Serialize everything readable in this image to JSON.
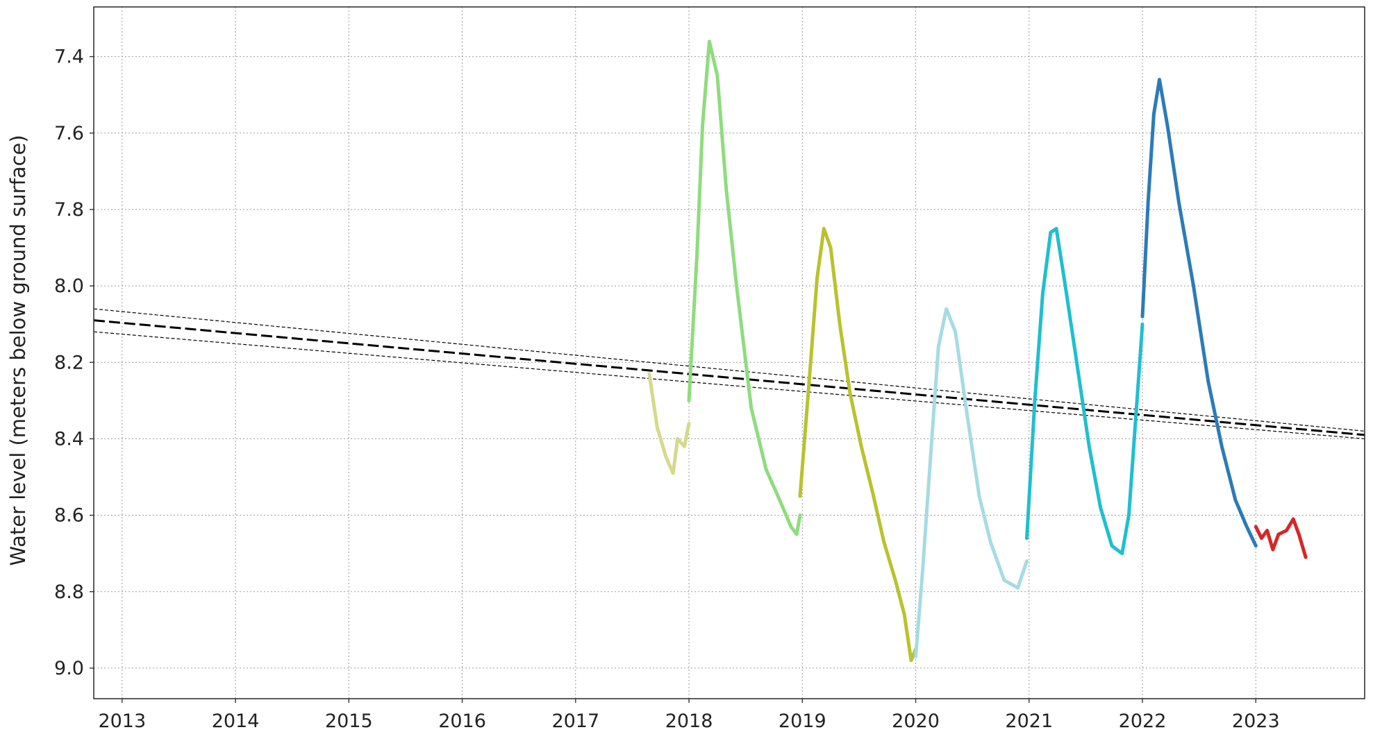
{
  "chart_data": {
    "type": "line",
    "ylabel": "Water level (meters below ground surface)",
    "xlabel": "",
    "y_inverted": true,
    "ylim": [
      7.27,
      9.08
    ],
    "xlim": [
      2012.75,
      2023.96
    ],
    "y_ticks": [
      7.4,
      7.6,
      7.8,
      8.0,
      8.2,
      8.4,
      8.6,
      8.8,
      9.0
    ],
    "y_tick_labels": [
      "7.4",
      "7.6",
      "7.8",
      "8.0",
      "8.2",
      "8.4",
      "8.6",
      "8.8",
      "9.0"
    ],
    "x_ticks": [
      2013,
      2014,
      2015,
      2016,
      2017,
      2018,
      2019,
      2020,
      2021,
      2022,
      2023
    ],
    "x_tick_labels": [
      "2013",
      "2014",
      "2015",
      "2016",
      "2017",
      "2018",
      "2019",
      "2020",
      "2021",
      "2022",
      "2023"
    ],
    "grid": true,
    "series": [
      {
        "color": "#d6d98a",
        "x": [
          2017.65,
          2017.72,
          2017.8,
          2017.86,
          2017.9,
          2017.96,
          2018.0
        ],
        "y": [
          8.23,
          8.37,
          8.45,
          8.49,
          8.4,
          8.42,
          8.36
        ]
      },
      {
        "color": "#8fdc7e",
        "x": [
          2018.0,
          2018.07,
          2018.12,
          2018.18,
          2018.25,
          2018.33,
          2018.42,
          2018.55,
          2018.68,
          2018.8,
          2018.9,
          2018.95,
          2018.98
        ],
        "y": [
          8.3,
          7.92,
          7.58,
          7.36,
          7.45,
          7.75,
          8.0,
          8.32,
          8.48,
          8.56,
          8.63,
          8.65,
          8.6
        ]
      },
      {
        "color": "#b9c22e",
        "x": [
          2018.98,
          2019.06,
          2019.13,
          2019.19,
          2019.25,
          2019.33,
          2019.42,
          2019.52,
          2019.62,
          2019.72,
          2019.82,
          2019.9,
          2019.96,
          2020.0
        ],
        "y": [
          8.55,
          8.25,
          7.98,
          7.85,
          7.9,
          8.1,
          8.28,
          8.42,
          8.54,
          8.67,
          8.77,
          8.86,
          8.98,
          8.95
        ]
      },
      {
        "color": "#a6dbe3",
        "x": [
          2020.0,
          2020.06,
          2020.13,
          2020.2,
          2020.27,
          2020.35,
          2020.45,
          2020.56,
          2020.66,
          2020.78,
          2020.9,
          2020.98
        ],
        "y": [
          8.97,
          8.75,
          8.45,
          8.16,
          8.06,
          8.12,
          8.33,
          8.55,
          8.67,
          8.77,
          8.79,
          8.72
        ]
      },
      {
        "color": "#1fbfcf",
        "x": [
          2020.98,
          2021.05,
          2021.12,
          2021.19,
          2021.24,
          2021.32,
          2021.42,
          2021.53,
          2021.63,
          2021.73,
          2021.82,
          2021.88,
          2021.94,
          2022.0
        ],
        "y": [
          8.66,
          8.3,
          8.02,
          7.86,
          7.85,
          8.0,
          8.2,
          8.42,
          8.58,
          8.68,
          8.7,
          8.6,
          8.35,
          8.1
        ]
      },
      {
        "color": "#2b7bb8",
        "x": [
          2022.0,
          2022.05,
          2022.1,
          2022.15,
          2022.22,
          2022.32,
          2022.45,
          2022.58,
          2022.7,
          2022.82,
          2022.92,
          2023.0
        ],
        "y": [
          8.08,
          7.78,
          7.55,
          7.46,
          7.58,
          7.78,
          8.0,
          8.25,
          8.42,
          8.56,
          8.63,
          8.68
        ]
      },
      {
        "color": "#d62728",
        "x": [
          2023.0,
          2023.05,
          2023.1,
          2023.15,
          2023.2,
          2023.27,
          2023.33,
          2023.38,
          2023.44
        ],
        "y": [
          8.63,
          8.66,
          8.64,
          8.69,
          8.65,
          8.64,
          8.61,
          8.65,
          8.71
        ]
      }
    ],
    "trend_line": {
      "style": "dashed",
      "color": "#000000",
      "x": [
        2012.75,
        2023.96
      ],
      "y": [
        8.09,
        8.39
      ]
    },
    "confidence_band": {
      "style": "dashed",
      "color": "#000000",
      "upper": {
        "x": [
          2012.75,
          2023.96
        ],
        "y": [
          8.06,
          8.38
        ]
      },
      "lower": {
        "x": [
          2012.75,
          2023.96
        ],
        "y": [
          8.12,
          8.4
        ]
      }
    }
  }
}
